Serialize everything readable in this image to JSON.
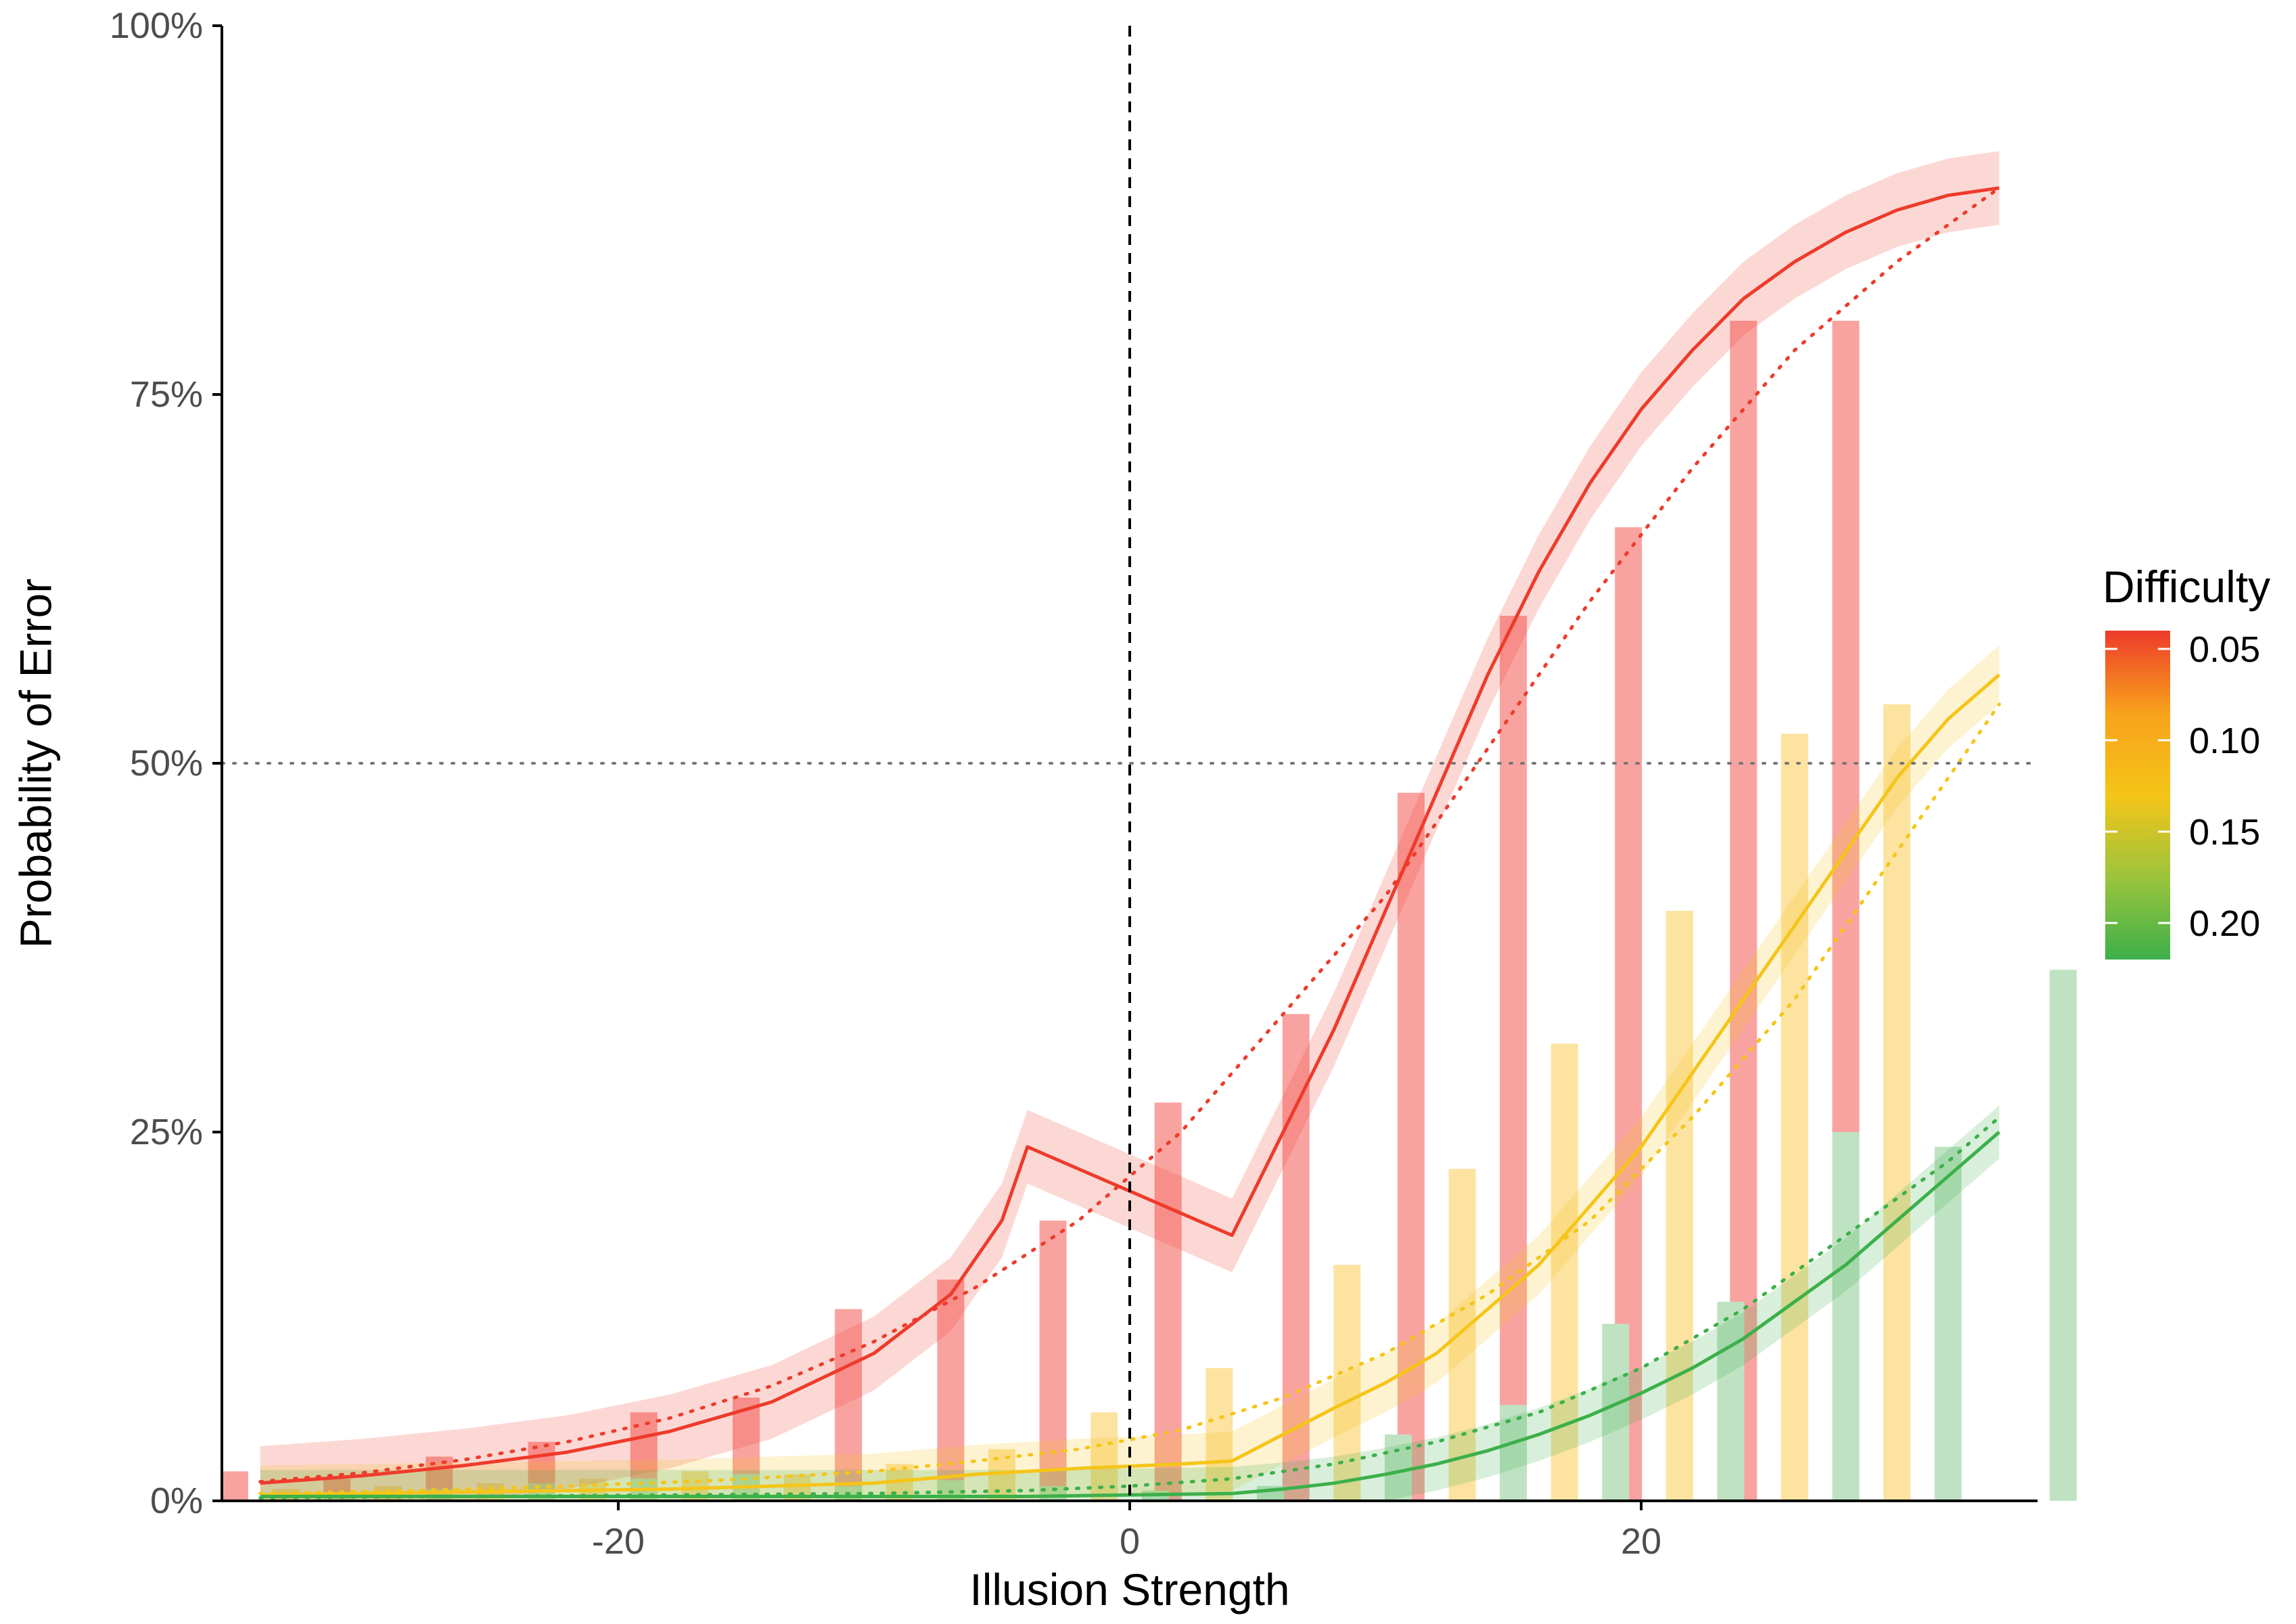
{
  "chart_data": {
    "type": "bar",
    "xlabel": "Illusion Strength",
    "ylabel": "Probability of Error",
    "xlim": [
      -35.5,
      35.5
    ],
    "ylim": [
      0,
      1
    ],
    "x_ticks": [
      {
        "value": -20,
        "label": "-20"
      },
      {
        "value": 0,
        "label": "0"
      },
      {
        "value": 20,
        "label": "20"
      }
    ],
    "y_ticks": [
      {
        "value": 0,
        "label": "0%"
      },
      {
        "value": 0.25,
        "label": "25%"
      },
      {
        "value": 0.5,
        "label": "50%"
      },
      {
        "value": 0.75,
        "label": "75%"
      },
      {
        "value": 1,
        "label": "100%"
      }
    ],
    "grid": false,
    "reference_lines": {
      "vertical_dashed_x": 0,
      "horizontal_dotted_y": 0.5
    },
    "legend": {
      "title": "Difficulty",
      "placement": "right",
      "type": "colorbar",
      "range": [
        0.04,
        0.22
      ],
      "ticks": [
        {
          "value": 0.05,
          "label": "0.05"
        },
        {
          "value": 0.1,
          "label": "0.10"
        },
        {
          "value": 0.15,
          "label": "0.15"
        },
        {
          "value": 0.2,
          "label": "0.20"
        }
      ],
      "colors": [
        "#ee3b2b",
        "#f7a21b",
        "#f5c518",
        "#9cc43c",
        "#3cb04a"
      ]
    },
    "series": [
      {
        "difficulty": 0.05,
        "color": "#ee3b2b",
        "bar_color": "#f9a3a0",
        "bars": {
          "x": [
            -35,
            -31,
            -27,
            -23,
            -19,
            -15,
            -11,
            -7,
            -3,
            1.5,
            6.5,
            11,
            15,
            19.5,
            24,
            28,
            32.5
          ],
          "y": [
            0.02,
            0.015,
            0.03,
            0.04,
            0.06,
            0.07,
            0.13,
            0.15,
            0.19,
            0.27,
            0.33,
            0.48,
            0.6,
            0.66,
            0.8,
            0.8,
            0
          ]
        },
        "fit": {
          "x": [
            -34,
            -30,
            -26,
            -22,
            -18,
            -14,
            -10,
            -7,
            -5,
            -4,
            0,
            4,
            6,
            8,
            10,
            12,
            14,
            16,
            18,
            20,
            22,
            24,
            26,
            28,
            30,
            32,
            34
          ],
          "y": [
            0.012,
            0.017,
            0.024,
            0.033,
            0.047,
            0.067,
            0.1,
            0.14,
            0.19,
            0.24,
            0.21,
            0.18,
            0.25,
            0.32,
            0.4,
            0.48,
            0.56,
            0.63,
            0.69,
            0.74,
            0.78,
            0.815,
            0.84,
            0.86,
            0.875,
            0.885,
            0.89
          ],
          "band": 0.025
        },
        "dotted": {
          "x": [
            -34,
            -30,
            -26,
            -22,
            -18,
            -14,
            -10,
            -6,
            -2,
            2,
            6,
            10,
            14,
            18,
            22,
            26,
            30,
            34
          ],
          "y": [
            0.013,
            0.019,
            0.028,
            0.04,
            0.056,
            0.078,
            0.108,
            0.145,
            0.19,
            0.25,
            0.33,
            0.41,
            0.51,
            0.61,
            0.7,
            0.78,
            0.84,
            0.89
          ]
        }
      },
      {
        "difficulty": 0.13,
        "color": "#f5c518",
        "bar_color": "#fde3a0",
        "bars": {
          "x": [
            -33,
            -29,
            -25,
            -21,
            -17,
            -13,
            -9,
            -5,
            -1,
            3.5,
            8.5,
            13,
            17,
            21.5,
            26,
            30,
            34.5
          ],
          "y": [
            0.008,
            0.01,
            0.012,
            0.015,
            0.02,
            0.018,
            0.025,
            0.035,
            0.06,
            0.09,
            0.16,
            0.225,
            0.31,
            0.4,
            0.52,
            0.54,
            0
          ]
        },
        "fit": {
          "x": [
            -34,
            -30,
            -26,
            -22,
            -18,
            -14,
            -10,
            -6,
            -2,
            2,
            4,
            6,
            8,
            10,
            12,
            14,
            16,
            18,
            20,
            22,
            24,
            26,
            28,
            30,
            32,
            34
          ],
          "y": [
            0.004,
            0.005,
            0.006,
            0.007,
            0.008,
            0.01,
            0.012,
            0.018,
            0.022,
            0.025,
            0.027,
            0.045,
            0.063,
            0.08,
            0.1,
            0.13,
            0.16,
            0.2,
            0.24,
            0.29,
            0.34,
            0.39,
            0.44,
            0.49,
            0.53,
            0.56
          ],
          "band": 0.02
        },
        "dotted": {
          "x": [
            -34,
            -28,
            -22,
            -16,
            -10,
            -6,
            -2,
            2,
            6,
            10,
            14,
            18,
            22,
            26,
            30,
            34
          ],
          "y": [
            0.005,
            0.007,
            0.01,
            0.014,
            0.02,
            0.027,
            0.035,
            0.048,
            0.07,
            0.1,
            0.14,
            0.19,
            0.26,
            0.34,
            0.44,
            0.54
          ]
        }
      },
      {
        "difficulty": 0.2,
        "color": "#3cb04a",
        "bar_color": "#bfe3c2",
        "bars": {
          "x": [
            -31,
            -27,
            -23,
            -19,
            -15,
            -11,
            -7,
            -3,
            1,
            5.5,
            10.5,
            15,
            19,
            23.5,
            28,
            32,
            36.5
          ],
          "y": [
            0.006,
            0.008,
            0.012,
            0.015,
            0.018,
            0.01,
            0.014,
            0.01,
            0.007,
            0.01,
            0.045,
            0.065,
            0.12,
            0.135,
            0.25,
            0.24,
            0.36
          ]
        },
        "fit": {
          "x": [
            -34,
            -28,
            -22,
            -16,
            -10,
            -4,
            0,
            4,
            6,
            8,
            10,
            12,
            14,
            16,
            18,
            20,
            22,
            24,
            26,
            28,
            30,
            32,
            34
          ],
          "y": [
            0.003,
            0.003,
            0.003,
            0.003,
            0.003,
            0.003,
            0.004,
            0.005,
            0.008,
            0.012,
            0.018,
            0.025,
            0.034,
            0.045,
            0.058,
            0.073,
            0.09,
            0.11,
            0.135,
            0.16,
            0.19,
            0.22,
            0.25
          ],
          "band": 0.018
        },
        "dotted": {
          "x": [
            -34,
            -26,
            -18,
            -10,
            -4,
            0,
            4,
            8,
            12,
            16,
            20,
            24,
            28,
            32,
            34
          ],
          "y": [
            0.002,
            0.003,
            0.004,
            0.005,
            0.007,
            0.01,
            0.015,
            0.025,
            0.04,
            0.06,
            0.09,
            0.13,
            0.18,
            0.23,
            0.26
          ]
        }
      }
    ]
  }
}
